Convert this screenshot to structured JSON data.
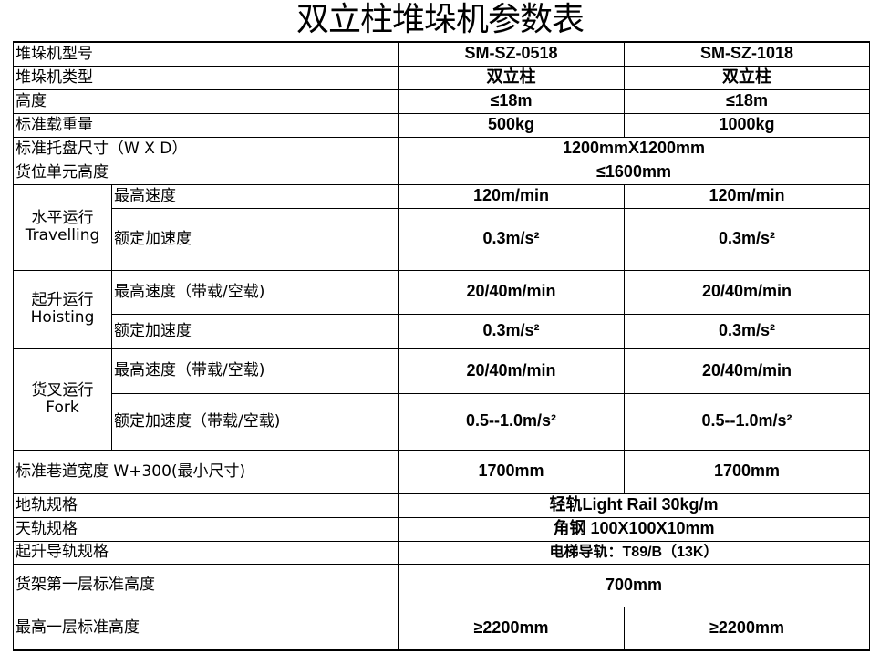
{
  "title": "双立柱堆垛机参数表",
  "rows": {
    "model": {
      "label": "堆垛机型号",
      "a": "SM-SZ-0518",
      "b": "SM-SZ-1018"
    },
    "type": {
      "label": "堆垛机类型",
      "a": "双立柱",
      "b": "双立柱"
    },
    "height": {
      "label": "高度",
      "a": "≤18m",
      "b": "≤18m"
    },
    "load": {
      "label": "标准载重量",
      "a": "500kg",
      "b": "1000kg"
    },
    "pallet": {
      "label": "标准托盘尺寸（W X D）",
      "v": "1200mmX1200mm"
    },
    "cell": {
      "label": "货位单元高度",
      "v": "≤1600mm"
    },
    "travel": {
      "label1": "水平运行",
      "label2": "Travelling",
      "speed_label": "最高速度",
      "speed_a": "120m/min",
      "speed_b": "120m/min",
      "acc_label": "额定加速度",
      "acc_a": "0.3m/s²",
      "acc_b": "0.3m/s²"
    },
    "hoist": {
      "label1": "起升运行",
      "label2": "Hoisting",
      "speed_label": "最高速度（带载/空载)",
      "speed_a": "20/40m/min",
      "speed_b": "20/40m/min",
      "acc_label": "额定加速度",
      "acc_a": "0.3m/s²",
      "acc_b": "0.3m/s²"
    },
    "fork": {
      "label1": "货叉运行",
      "label2": "Fork",
      "speed_label": "最高速度（带载/空载)",
      "speed_a": "20/40m/min",
      "speed_b": "20/40m/min",
      "acc_label": "额定加速度（带载/空载)",
      "acc_a": "0.5--1.0m/s²",
      "acc_b": "0.5--1.0m/s²"
    },
    "aisle": {
      "label": "标准巷道宽度 W+300(最小尺寸)",
      "a": "1700mm",
      "b": "1700mm"
    },
    "ground_rail": {
      "label": "地轨规格",
      "v": "轻轨Light Rail 30kg/m"
    },
    "top_rail": {
      "label": "天轨规格",
      "v": "角钢 100X100X10mm"
    },
    "guide_rail": {
      "label": "起升导轨规格",
      "v": "电梯导轨：T89/B（13K）"
    },
    "first_level": {
      "label": "货架第一层标准高度",
      "v": "700mm"
    },
    "top_level": {
      "label": "最高一层标准高度",
      "a": "≥2200mm",
      "b": "≥2200mm"
    }
  }
}
